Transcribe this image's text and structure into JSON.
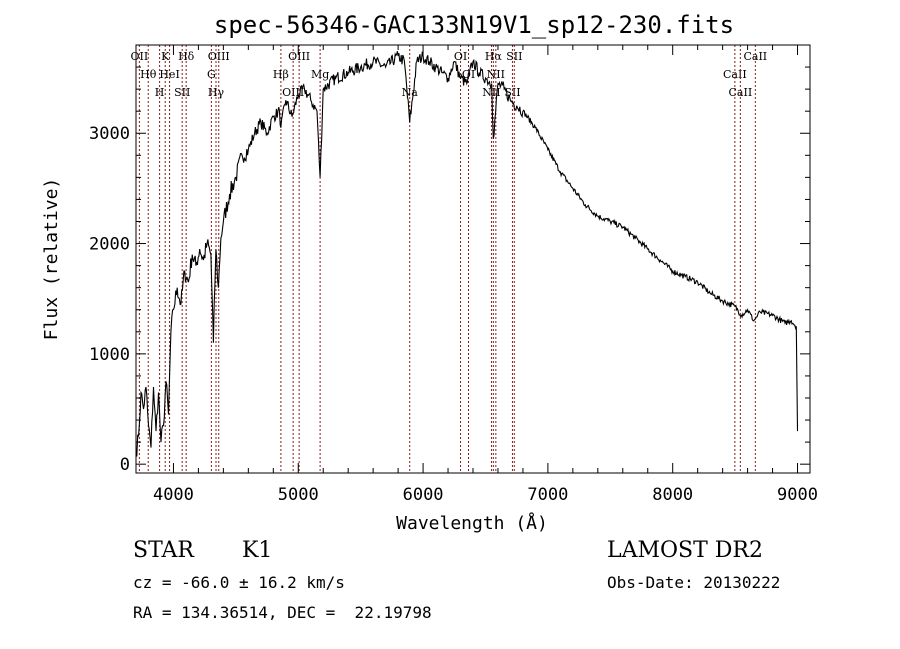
{
  "chart_data": {
    "type": "line",
    "title": "spec-56346-GAC133N19V1_sp12-230.fits",
    "xlabel": "Wavelength (Å)",
    "ylabel": "Flux (relative)",
    "xlim": [
      3700,
      9100
    ],
    "ylim": [
      -80,
      3800
    ],
    "xticks": [
      4000,
      5000,
      6000,
      7000,
      8000,
      9000
    ],
    "yticks": [
      0,
      1000,
      2000,
      3000
    ],
    "grid": false,
    "line_color": "#000000",
    "marker_color": "#8b1a1a",
    "series": [
      {
        "x": [
          3700,
          3720,
          3740,
          3760,
          3780,
          3800,
          3820,
          3840,
          3860,
          3880,
          3900,
          3920,
          3940,
          3960,
          3980,
          4000,
          4030,
          4060,
          4090,
          4120,
          4150,
          4180,
          4210,
          4240,
          4270,
          4300,
          4320,
          4340,
          4360,
          4380,
          4400,
          4450,
          4500,
          4550,
          4600,
          4650,
          4700,
          4750,
          4800,
          4850,
          4861,
          4900,
          4950,
          5000,
          5050,
          5100,
          5150,
          5175,
          5200,
          5300,
          5400,
          5500,
          5600,
          5700,
          5800,
          5850,
          5893,
          5950,
          6000,
          6050,
          6100,
          6150,
          6200,
          6250,
          6300,
          6350,
          6400,
          6450,
          6500,
          6550,
          6563,
          6600,
          6650,
          6700,
          6750,
          6800,
          6900,
          7000,
          7100,
          7200,
          7300,
          7400,
          7500,
          7600,
          7700,
          7800,
          7900,
          8000,
          8100,
          8200,
          8300,
          8400,
          8500,
          8550,
          8600,
          8650,
          8700,
          8800,
          8900,
          8950,
          8990,
          9000
        ],
        "y": [
          100,
          250,
          650,
          500,
          700,
          350,
          150,
          700,
          300,
          650,
          200,
          350,
          750,
          450,
          1200,
          1400,
          1600,
          1450,
          1750,
          1650,
          1900,
          1800,
          1950,
          1850,
          2000,
          1900,
          1100,
          1950,
          1600,
          2050,
          2200,
          2450,
          2600,
          2800,
          2850,
          3000,
          3100,
          3000,
          3150,
          3200,
          3050,
          3300,
          3150,
          3350,
          3400,
          3300,
          3200,
          2600,
          3400,
          3500,
          3550,
          3600,
          3650,
          3600,
          3700,
          3650,
          3100,
          3650,
          3700,
          3650,
          3600,
          3550,
          3500,
          3650,
          3500,
          3450,
          3650,
          3550,
          3500,
          3450,
          2950,
          3450,
          3400,
          3300,
          3250,
          3200,
          3050,
          2850,
          2650,
          2500,
          2350,
          2250,
          2200,
          2150,
          2050,
          1950,
          1850,
          1750,
          1700,
          1650,
          1550,
          1480,
          1430,
          1350,
          1400,
          1300,
          1380,
          1350,
          1280,
          1300,
          1250,
          300
        ]
      }
    ],
    "lines": [
      {
        "name": "OII",
        "wl": 3727
      },
      {
        "name": "Hθ",
        "wl": 3798
      },
      {
        "name": "H",
        "wl": 3889
      },
      {
        "name": "K",
        "wl": 3934
      },
      {
        "name": "HeI",
        "wl": 3969
      },
      {
        "name": "SII",
        "wl": 4070
      },
      {
        "name": "Hδ",
        "wl": 4102
      },
      {
        "name": "G",
        "wl": 4304
      },
      {
        "name": "Hγ",
        "wl": 4341
      },
      {
        "name": "OIII",
        "wl": 4363
      },
      {
        "name": "Hβ",
        "wl": 4861
      },
      {
        "name": "OIII",
        "wl": 4959
      },
      {
        "name": "OIII",
        "wl": 5007
      },
      {
        "name": "Mg",
        "wl": 5175
      },
      {
        "name": "Na",
        "wl": 5893
      },
      {
        "name": "OI",
        "wl": 6300
      },
      {
        "name": "OI",
        "wl": 6364
      },
      {
        "name": "NII",
        "wl": 6548
      },
      {
        "name": "Hα",
        "wl": 6563
      },
      {
        "name": "NII",
        "wl": 6583
      },
      {
        "name": "SII",
        "wl": 6716
      },
      {
        "name": "SII",
        "wl": 6731
      },
      {
        "name": "CaII",
        "wl": 8498
      },
      {
        "name": "CaII",
        "wl": 8542
      },
      {
        "name": "CaII",
        "wl": 8662
      }
    ]
  },
  "info": {
    "object_class": "STAR",
    "subclass": "K1",
    "survey": "LAMOST DR2",
    "redshift": "cz = -66.0 ± 16.2 km/s",
    "obs_date": "Obs-Date: 20130222",
    "coords": "RA = 134.36514, DEC =  22.19798"
  }
}
